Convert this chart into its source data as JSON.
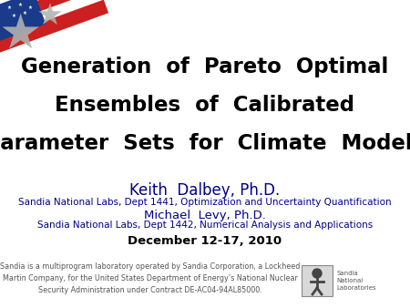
{
  "bg_color": "#ffffff",
  "title_line1": "Generation  of  Pareto  Optimal",
  "title_line2": "Ensembles  of  Calibrated",
  "title_line3": "Parameter  Sets  for  Climate  Models",
  "title_color": "#000000",
  "title_fontsize": 16.5,
  "title_bold": true,
  "author1": "Keith  Dalbey, Ph.D.",
  "author1_color": "#00008b",
  "author1_fontsize": 12,
  "author1_dept": "Sandia National Labs, Dept 1441, Optimization and Uncertainty Quantification",
  "author1_dept_color": "#00008b",
  "author1_dept_fontsize": 7.5,
  "author2": "Michael  Levy, Ph.D.",
  "author2_color": "#00008b",
  "author2_fontsize": 9.5,
  "author2_dept": "Sandia National Labs, Dept 1442, Numerical Analysis and Applications",
  "author2_dept_color": "#00008b",
  "author2_dept_fontsize": 7.5,
  "date": "December 12-17, 2010",
  "date_color": "#000000",
  "date_fontsize": 9.5,
  "footer_text": "Sandia is a multiprogram laboratory operated by Sandia Corporation, a Lockheed\nMartin Company, for the United States Department of Energy’s National Nuclear\nSecurity Administration under Contract DE-AC04-94AL85000.",
  "footer_color": "#555555",
  "footer_fontsize": 5.8,
  "snl_label": "Sandia\nNational\nLaboratories",
  "snl_label_color": "#555555",
  "snl_label_fontsize": 5.0,
  "flag_colors_red": "#cc2020",
  "flag_colors_blue": "#1a3a8a",
  "flag_colors_silver": "#b0b0b0"
}
